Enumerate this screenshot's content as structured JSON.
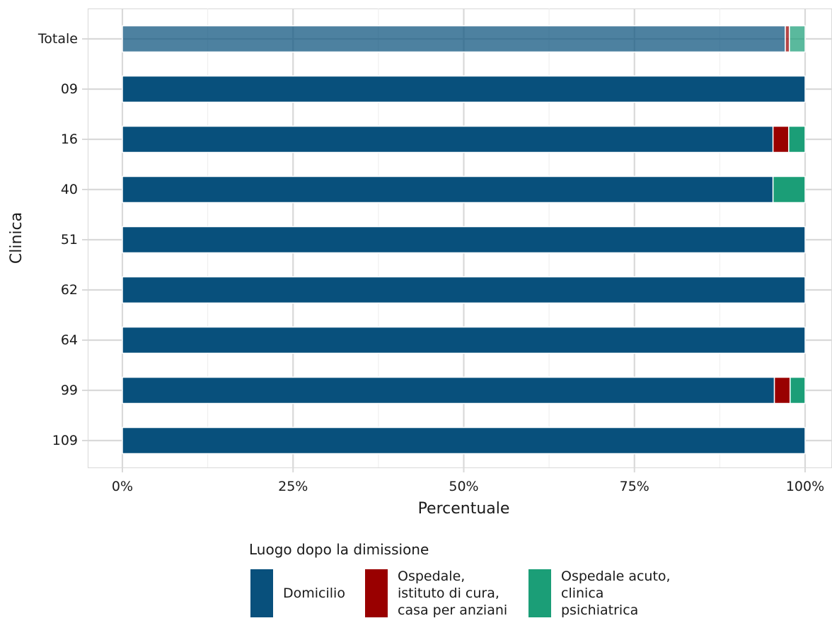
{
  "chart_data": {
    "type": "bar",
    "orientation": "horizontal",
    "stacked": true,
    "title": "",
    "xlabel": "Percentuale",
    "ylabel": "Clinica",
    "xlim": [
      0,
      100
    ],
    "x_ticks": [
      "0%",
      "25%",
      "50%",
      "75%",
      "100%"
    ],
    "grid": true,
    "legend_position": "bottom",
    "legend_title": "Luogo dopo la dimissione",
    "categories": [
      "Totale",
      "09",
      "16",
      "40",
      "51",
      "62",
      "64",
      "99",
      "109"
    ],
    "highlight_category": "Totale",
    "series": [
      {
        "name": "Domicilio",
        "legend_label": [
          "Domicilio"
        ],
        "color": "#08507C",
        "values": [
          97.1,
          100,
          95.3,
          95.3,
          100,
          100,
          100,
          95.5,
          100
        ]
      },
      {
        "name": "Ospedale, istituto di cura, casa per anziani",
        "legend_label": [
          "Ospedale,",
          "istituto di cura,",
          "casa per anziani"
        ],
        "color": "#990000",
        "values": [
          0.6,
          0,
          2.3,
          0,
          0,
          0,
          0,
          2.3,
          0
        ]
      },
      {
        "name": "Ospedale acuto, clinica psichiatrica",
        "legend_label": [
          "Ospedale acuto,",
          "clinica",
          "psichiatrica"
        ],
        "color": "#1B9E77",
        "values": [
          2.3,
          0,
          2.4,
          4.7,
          0,
          0,
          0,
          2.2,
          0
        ]
      }
    ]
  }
}
